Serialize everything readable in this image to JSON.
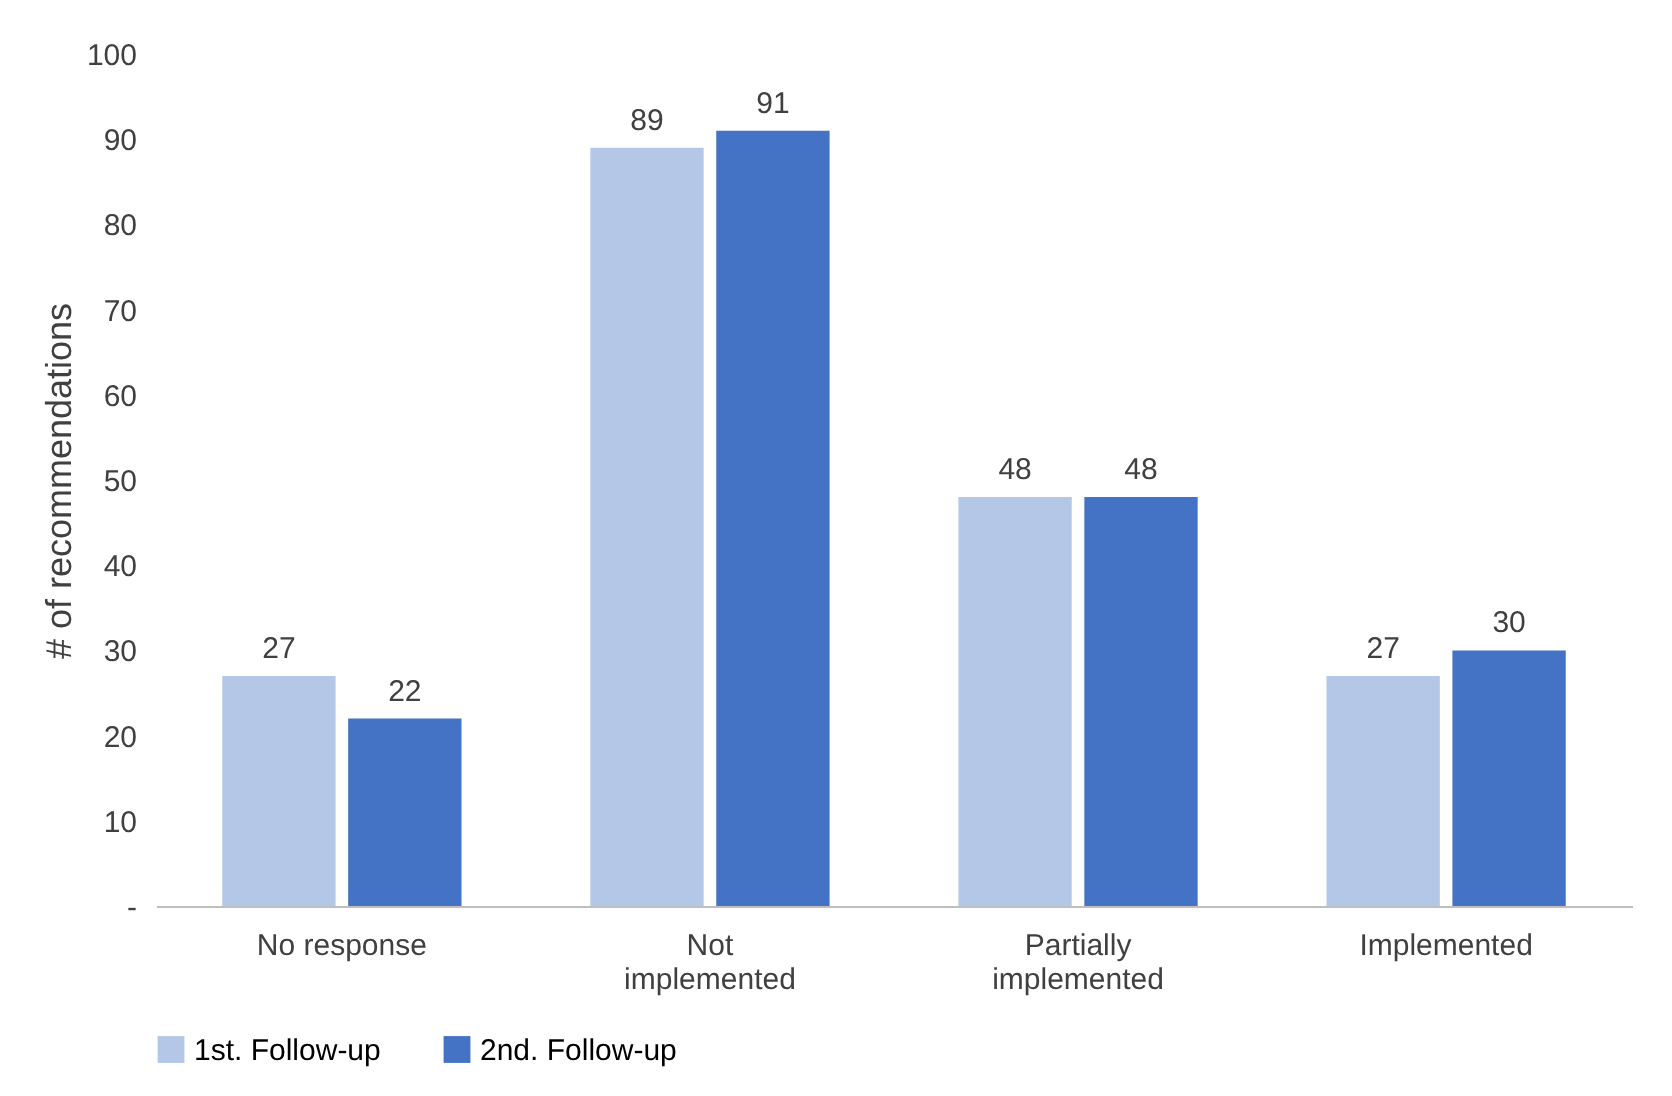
{
  "chart_data": {
    "type": "bar",
    "ylabel": "# of recommendations",
    "categories": [
      "No response",
      "Not implemented",
      "Partially implemented",
      "Implemented"
    ],
    "series": [
      {
        "name": "1st. Follow-up",
        "color": "#b4c7e7",
        "values": [
          27,
          89,
          48,
          27
        ]
      },
      {
        "name": "2nd. Follow-up",
        "color": "#4472c4",
        "values": [
          22,
          91,
          48,
          30
        ]
      }
    ],
    "ylim": [
      0,
      100
    ],
    "yticks": [
      {
        "value": 0,
        "label": "-"
      },
      10,
      20,
      30,
      40,
      50,
      60,
      70,
      80,
      90,
      100
    ],
    "grid": false,
    "legend": "bottom",
    "data_labels": true
  }
}
